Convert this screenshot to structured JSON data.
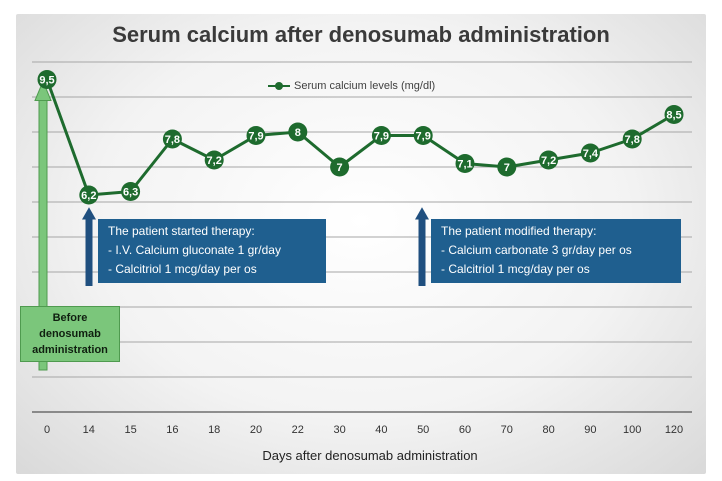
{
  "chart_data": {
    "type": "line",
    "title": "Serum calcium after denosumab administration",
    "xlabel": "Days after denosumab administration",
    "ylabel": "",
    "x": [
      "0",
      "14",
      "15",
      "16",
      "18",
      "20",
      "22",
      "30",
      "40",
      "50",
      "60",
      "70",
      "80",
      "90",
      "100",
      "120"
    ],
    "series": [
      {
        "name": "Serum calcium levels (mg/dl)",
        "values": [
          9.5,
          6.2,
          6.3,
          7.8,
          7.2,
          7.9,
          8,
          7,
          7.9,
          7.9,
          7.1,
          7,
          7.2,
          7.4,
          7.8,
          8.5
        ],
        "labels": [
          "9,5",
          "6,2",
          "6,3",
          "7,8",
          "7,2",
          "7,9",
          "8",
          "7",
          "7,9",
          "7,9",
          "7,1",
          "7",
          "7,2",
          "7,4",
          "7,8",
          "8,5"
        ]
      }
    ],
    "ylim": [
      0,
      10
    ],
    "grid": true,
    "legend": "top-center",
    "colors": {
      "line": "#1e6b2e",
      "annotation": "#1f5f8f",
      "before_box": "#7bc67b"
    }
  },
  "annotations": {
    "therapy_start": {
      "title": "The patient started therapy:",
      "line1": "- I.V. Calcium gluconate 1 gr/day",
      "line2": "- Calcitriol 1 mcg/day  per os"
    },
    "therapy_modified": {
      "title": "The patient modified therapy:",
      "line1": "- Calcium carbonate 3 gr/day per os",
      "line2": "- Calcitriol 1 mcg/day per os"
    },
    "before": {
      "line1": "Before",
      "line2": "denosumab",
      "line3": "administration"
    }
  }
}
